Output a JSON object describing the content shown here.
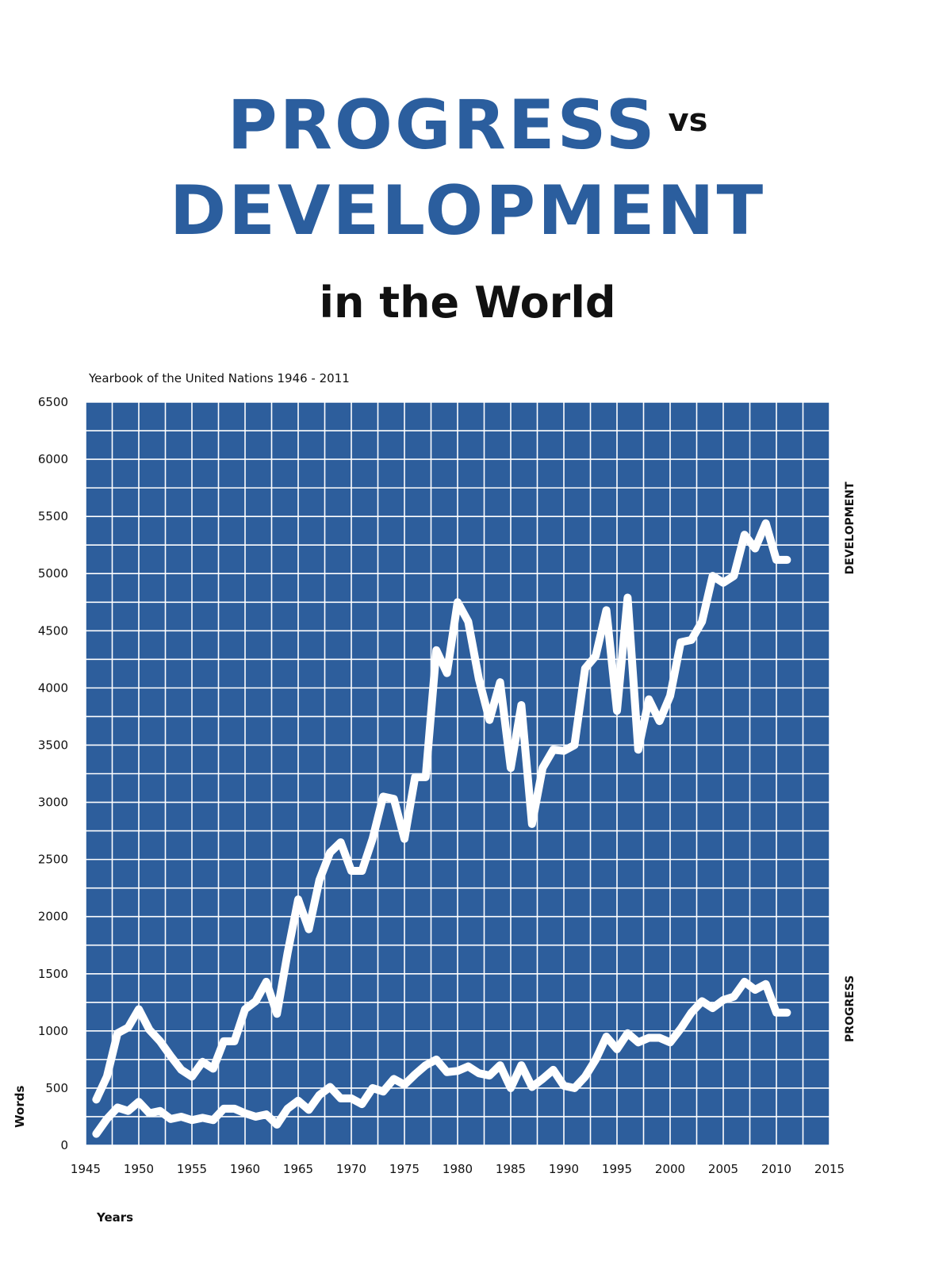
{
  "header": {
    "title_progress": "PROGRESS",
    "title_vs": "vs",
    "title_development": "DEVELOPMENT",
    "subtitle": "in the World",
    "source": "Yearbook of the United Nations 1946 - 2011"
  },
  "colors": {
    "title_blue": "#2b5e9e",
    "plot_background": "#2d5e9c",
    "grid": "#ffffff",
    "series_line": "#ffffff"
  },
  "chart_data": {
    "type": "line",
    "xlabel": "Years",
    "ylabel": "Words",
    "xlim": [
      1945,
      2015
    ],
    "ylim": [
      0,
      6500
    ],
    "grid": true,
    "x_ticks": [
      1945,
      1950,
      1955,
      1960,
      1965,
      1970,
      1975,
      1980,
      1985,
      1990,
      1995,
      2000,
      2005,
      2010,
      2015
    ],
    "y_ticks": [
      0,
      500,
      1000,
      1500,
      2000,
      2500,
      3000,
      3500,
      4000,
      4500,
      5000,
      5500,
      6000,
      6500
    ],
    "x": [
      1946,
      1947,
      1948,
      1949,
      1950,
      1951,
      1952,
      1953,
      1954,
      1955,
      1956,
      1957,
      1958,
      1959,
      1960,
      1961,
      1962,
      1963,
      1964,
      1965,
      1966,
      1967,
      1968,
      1969,
      1970,
      1971,
      1972,
      1973,
      1974,
      1975,
      1976,
      1977,
      1978,
      1979,
      1980,
      1981,
      1982,
      1983,
      1984,
      1985,
      1986,
      1987,
      1988,
      1989,
      1990,
      1991,
      1992,
      1993,
      1994,
      1995,
      1996,
      1997,
      1998,
      1999,
      2000,
      2001,
      2002,
      2003,
      2004,
      2005,
      2006,
      2007,
      2008,
      2009,
      2010,
      2011
    ],
    "series": [
      {
        "name": "DEVELOPMENT",
        "values": [
          400,
          600,
          980,
          1030,
          1190,
          1010,
          910,
          780,
          660,
          600,
          730,
          670,
          910,
          910,
          1190,
          1260,
          1430,
          1150,
          1680,
          2150,
          1890,
          2320,
          2560,
          2650,
          2400,
          2400,
          2680,
          3050,
          3030,
          2680,
          3220,
          3220,
          4330,
          4130,
          4750,
          4580,
          4080,
          3720,
          4050,
          3300,
          3850,
          2810,
          3300,
          3460,
          3450,
          3500,
          4170,
          4280,
          4680,
          3800,
          4790,
          3460,
          3900,
          3710,
          3930,
          4400,
          4420,
          4580,
          4980,
          4920,
          4980,
          5340,
          5220,
          5440,
          5120,
          5120
        ],
        "values_end_year": 2011
      },
      {
        "name": "PROGRESS",
        "values": [
          100,
          230,
          330,
          300,
          380,
          280,
          300,
          230,
          250,
          220,
          240,
          220,
          320,
          320,
          280,
          250,
          270,
          180,
          320,
          390,
          310,
          440,
          510,
          410,
          410,
          360,
          500,
          470,
          580,
          530,
          620,
          700,
          750,
          640,
          650,
          690,
          630,
          610,
          700,
          500,
          700,
          510,
          580,
          660,
          520,
          500,
          600,
          750,
          950,
          840,
          980,
          900,
          940,
          940,
          900,
          1020,
          1160,
          1260,
          1200,
          1270,
          1300,
          1430,
          1360,
          1410,
          1160,
          1160
        ],
        "values_end_year": 2011
      }
    ]
  }
}
